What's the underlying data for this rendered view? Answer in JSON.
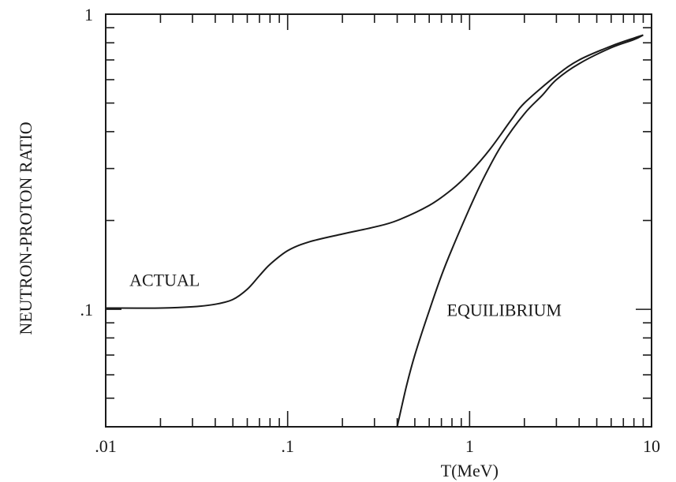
{
  "chart_data": {
    "type": "line",
    "x_scale": "log",
    "y_scale": "log",
    "xlim": [
      0.01,
      10
    ],
    "ylim": [
      0.04,
      1
    ],
    "xlabel": "T(MeV)",
    "ylabel": "NEUTRON-PROTON RATIO",
    "x_ticks": [
      {
        "value": 0.01,
        "label": ".01"
      },
      {
        "value": 0.1,
        "label": ".1"
      },
      {
        "value": 1,
        "label": "1"
      },
      {
        "value": 10,
        "label": "10"
      }
    ],
    "y_ticks": [
      {
        "value": 0.1,
        "label": ".1"
      },
      {
        "value": 1,
        "label": "1"
      }
    ],
    "grid": false,
    "series": [
      {
        "name": "ACTUAL",
        "x": [
          0.01,
          0.02,
          0.03,
          0.04,
          0.05,
          0.06,
          0.07,
          0.08,
          0.1,
          0.13,
          0.2,
          0.3,
          0.4,
          0.6,
          0.8,
          1,
          1.3,
          1.7,
          2,
          3,
          4,
          6,
          8,
          9
        ],
        "y": [
          0.101,
          0.101,
          0.102,
          0.104,
          0.108,
          0.117,
          0.13,
          0.142,
          0.158,
          0.169,
          0.18,
          0.19,
          0.2,
          0.225,
          0.255,
          0.29,
          0.35,
          0.44,
          0.5,
          0.62,
          0.7,
          0.78,
          0.83,
          0.85
        ]
      },
      {
        "name": "EQUILIBRIUM",
        "x": [
          0.4,
          0.45,
          0.5,
          0.6,
          0.7,
          0.8,
          1,
          1.2,
          1.5,
          2,
          2.5,
          3,
          4,
          6,
          8,
          9
        ],
        "y": [
          0.04,
          0.055,
          0.07,
          0.099,
          0.13,
          0.16,
          0.22,
          0.28,
          0.36,
          0.46,
          0.53,
          0.6,
          0.68,
          0.77,
          0.82,
          0.85
        ]
      }
    ],
    "annotations": [
      {
        "text": "ACTUAL",
        "x": 0.0135,
        "y": 0.12
      },
      {
        "text": "EQUILIBRIUM",
        "x": 0.75,
        "y": 0.095
      }
    ]
  }
}
